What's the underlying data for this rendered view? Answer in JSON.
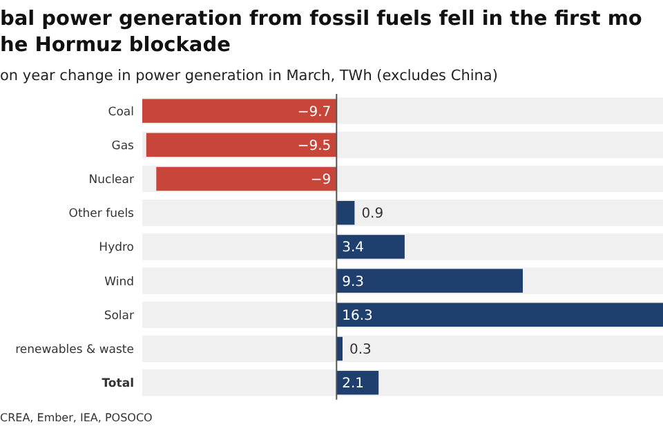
{
  "chart_data": {
    "type": "bar",
    "orientation": "horizontal",
    "title": "bal power generation from fossil fuels fell in the first mo\nhe Hormuz blockade",
    "subtitle": "on year change in power generation in March, TWh (excludes China)",
    "categories": [
      "Coal",
      "Gas",
      "Nuclear",
      "Other fuels",
      "Hydro",
      "Wind",
      "Solar",
      "renewables & waste",
      "Total"
    ],
    "values": [
      -9.7,
      -9.5,
      -9,
      0.9,
      3.4,
      9.3,
      16.3,
      0.3,
      2.1
    ],
    "value_labels": [
      "−9.7",
      "−9.5",
      "−9",
      "0.9",
      "3.4",
      "9.3",
      "16.3",
      "0.3",
      "2.1"
    ],
    "colors": [
      "#c8453a",
      "#c8453a",
      "#c8453a",
      "#1f3f6e",
      "#1f3f6e",
      "#1f3f6e",
      "#1f3f6e",
      "#1f3f6e",
      "#1f3f6e"
    ],
    "xlim": [
      -9.7,
      16.3
    ],
    "tick_labels": "y",
    "annotations": [
      "CREA, Ember, IEA, POSOCO"
    ]
  }
}
